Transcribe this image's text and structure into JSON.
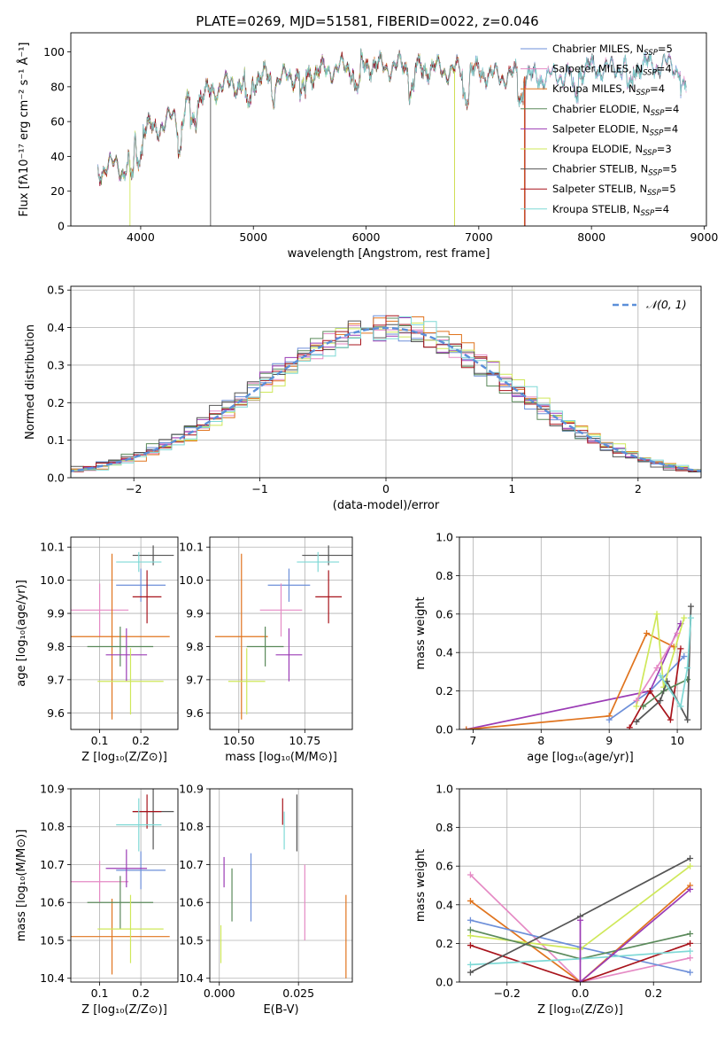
{
  "colors": {
    "chabrier_miles": "#6d8fd9",
    "salpeter_miles": "#e58ac4",
    "kroupa_miles": "#e0741e",
    "chabrier_elodie": "#5b8a5b",
    "salpeter_elodie": "#9b3bb5",
    "kroupa_elodie": "#cfe85a",
    "chabrier_stelib": "#555555",
    "salpeter_stelib": "#a8141c",
    "kroupa_stelib": "#7fd9d6",
    "gaussian": "#5b8fd9",
    "grid": "#b0b0b0"
  },
  "chart_data": [
    {
      "id": "spectrum",
      "type": "line",
      "title": "PLATE=0269, MJD=51581, FIBERID=0022, z=0.046",
      "xlabel": "wavelength [Angstrom, rest frame]",
      "ylabel": "Flux [fλ10⁻¹⁷ erg cm⁻² s⁻¹ Å⁻¹]",
      "xlim": [
        3380,
        9020
      ],
      "ylim": [
        0,
        111
      ],
      "xticks": [
        "4000",
        "5000",
        "6000",
        "7000",
        "8000",
        "9000"
      ],
      "yticks": [
        "0",
        "20",
        "40",
        "60",
        "80",
        "100"
      ],
      "grid": false,
      "legend_position": "top-right",
      "legend": [
        {
          "key": "chabrier_miles",
          "label": "Chabrier MILES, N",
          "sub": "SSP",
          "suffix": "=5"
        },
        {
          "key": "salpeter_miles",
          "label": "Salpeter MILES, N",
          "sub": "SSP",
          "suffix": "=4"
        },
        {
          "key": "kroupa_miles",
          "label": "Kroupa MILES, N",
          "sub": "SSP",
          "suffix": "=4"
        },
        {
          "key": "chabrier_elodie",
          "label": "Chabrier ELODIE, N",
          "sub": "SSP",
          "suffix": "=4"
        },
        {
          "key": "salpeter_elodie",
          "label": "Salpeter ELODIE, N",
          "sub": "SSP",
          "suffix": "=4"
        },
        {
          "key": "kroupa_elodie",
          "label": "Kroupa ELODIE, N",
          "sub": "SSP",
          "suffix": "=3"
        },
        {
          "key": "chabrier_stelib",
          "label": "Chabrier STELIB, N",
          "sub": "SSP",
          "suffix": "=5"
        },
        {
          "key": "salpeter_stelib",
          "label": "Salpeter STELIB, N",
          "sub": "SSP",
          "suffix": "=5"
        },
        {
          "key": "kroupa_stelib",
          "label": "Kroupa STELIB, N",
          "sub": "SSP",
          "suffix": "=4"
        }
      ],
      "envelope": [
        [
          3620,
          35
        ],
        [
          3700,
          38
        ],
        [
          3800,
          40
        ],
        [
          3850,
          34
        ],
        [
          3900,
          42
        ],
        [
          3950,
          52
        ],
        [
          4000,
          60
        ],
        [
          4100,
          60
        ],
        [
          4200,
          62
        ],
        [
          4300,
          68
        ],
        [
          4350,
          58
        ],
        [
          4400,
          72
        ],
        [
          4500,
          78
        ],
        [
          4600,
          80
        ],
        [
          4700,
          84
        ],
        [
          4800,
          86
        ],
        [
          4900,
          85
        ],
        [
          5000,
          88
        ],
        [
          5100,
          90
        ],
        [
          5200,
          87
        ],
        [
          5300,
          90
        ],
        [
          5400,
          91
        ],
        [
          5500,
          92
        ],
        [
          5600,
          93
        ],
        [
          5700,
          94
        ],
        [
          5800,
          95
        ],
        [
          5900,
          95
        ],
        [
          6000,
          97
        ],
        [
          6100,
          96
        ],
        [
          6200,
          95
        ],
        [
          6300,
          96
        ],
        [
          6400,
          95
        ],
        [
          6500,
          94
        ],
        [
          6600,
          95
        ],
        [
          6700,
          93
        ],
        [
          6800,
          94
        ],
        [
          6900,
          92
        ],
        [
          7000,
          93
        ],
        [
          7100,
          91
        ],
        [
          7200,
          90
        ],
        [
          7300,
          91
        ],
        [
          7400,
          91
        ],
        [
          7500,
          89
        ],
        [
          7600,
          90
        ],
        [
          7700,
          90
        ],
        [
          7800,
          92
        ],
        [
          7900,
          93
        ],
        [
          8000,
          95
        ],
        [
          8100,
          94
        ],
        [
          8200,
          95
        ],
        [
          8300,
          96
        ],
        [
          8400,
          95
        ],
        [
          8500,
          97
        ],
        [
          8600,
          96
        ],
        [
          8700,
          97
        ],
        [
          8800,
          94
        ],
        [
          8840,
          95
        ]
      ],
      "dropouts": [
        {
          "key": "chabrier_stelib",
          "x": 4620,
          "y0": 0
        },
        {
          "key": "kroupa_miles",
          "x": 6785,
          "y0": 0
        },
        {
          "key": "kroupa_elodie",
          "x": 6785,
          "y0": 0
        },
        {
          "key": "kroupa_miles",
          "x": 7405,
          "y0": 0
        },
        {
          "key": "salpeter_stelib",
          "x": 7410,
          "y0": 0
        },
        {
          "key": "kroupa_elodie",
          "x": 3905,
          "y0": 0
        }
      ],
      "model_ends": [
        {
          "key": "kroupa_miles",
          "x_end": 7400
        },
        {
          "key": "salpeter_stelib",
          "x_end": 7410
        },
        {
          "key": "chabrier_elodie",
          "x_end": 6790
        },
        {
          "key": "salpeter_elodie",
          "x_end": 6790
        },
        {
          "key": "kroupa_elodie",
          "x_end": 6790
        }
      ]
    },
    {
      "id": "residuals",
      "type": "histogram",
      "xlabel": "(data-model)/error",
      "ylabel": "Normed distribution",
      "xlim": [
        -2.5,
        2.5
      ],
      "ylim": [
        0,
        0.51
      ],
      "xticks": [
        "−2",
        "−1",
        "0",
        "1",
        "2"
      ],
      "yticks": [
        "0.0",
        "0.1",
        "0.2",
        "0.3",
        "0.4",
        "0.5"
      ],
      "grid": true,
      "legend_position": "top-right",
      "gaussian_label": "𝒩(0, 1)",
      "bin_width": 0.1
    },
    {
      "id": "age-vs-z",
      "type": "errorbar",
      "xlabel": "Z [log₁₀(Z/Z⊙)]",
      "ylabel": "age  [log₁₀(age/yr)]",
      "xlim": [
        0.03,
        0.29
      ],
      "ylim": [
        9.55,
        10.13
      ],
      "xticks": [
        "0.1",
        "0.2"
      ],
      "yticks": [
        "9.6",
        "9.7",
        "9.8",
        "9.9",
        "10.0",
        "10.1"
      ],
      "grid": true,
      "points": [
        {
          "key": "chabrier_miles",
          "x": 0.2,
          "xerr": 0.06,
          "y": 9.985,
          "yerr": 0.05
        },
        {
          "key": "salpeter_miles",
          "x": 0.1,
          "xerr": 0.07,
          "y": 9.91,
          "yerr": 0.08
        },
        {
          "key": "kroupa_miles",
          "x": 0.13,
          "xerr": 0.14,
          "y": 9.83,
          "yerr": 0.25
        },
        {
          "key": "chabrier_elodie",
          "x": 0.15,
          "xerr": 0.08,
          "y": 9.8,
          "yerr": 0.06
        },
        {
          "key": "salpeter_elodie",
          "x": 0.165,
          "xerr": 0.05,
          "y": 9.775,
          "yerr": 0.08
        },
        {
          "key": "kroupa_elodie",
          "x": 0.175,
          "xerr": 0.08,
          "y": 9.695,
          "yerr": 0.1
        },
        {
          "key": "chabrier_stelib",
          "x": 0.23,
          "xerr": 0.05,
          "y": 10.075,
          "yerr": 0.03
        },
        {
          "key": "salpeter_stelib",
          "x": 0.215,
          "xerr": 0.035,
          "y": 9.95,
          "yerr": 0.08
        },
        {
          "key": "kroupa_stelib",
          "x": 0.195,
          "xerr": 0.055,
          "y": 10.055,
          "yerr": 0.03
        }
      ]
    },
    {
      "id": "age-vs-mass",
      "type": "errorbar",
      "xlabel": "mass [log₁₀(M/M⊙)]",
      "ylabel": "",
      "xlim": [
        10.39,
        10.93
      ],
      "ylim": [
        9.55,
        10.13
      ],
      "xticks": [
        "10.50",
        "10.75"
      ],
      "yticks": [
        "9.6",
        "9.7",
        "9.8",
        "9.9",
        "10.0",
        "10.1"
      ],
      "grid": true,
      "points": [
        {
          "key": "chabrier_miles",
          "x": 10.69,
          "xerr": 0.08,
          "y": 9.985,
          "yerr": 0.05
        },
        {
          "key": "salpeter_miles",
          "x": 10.66,
          "xerr": 0.08,
          "y": 9.91,
          "yerr": 0.08
        },
        {
          "key": "kroupa_miles",
          "x": 10.51,
          "xerr": 0.1,
          "y": 9.83,
          "yerr": 0.25
        },
        {
          "key": "chabrier_elodie",
          "x": 10.6,
          "xerr": 0.07,
          "y": 9.8,
          "yerr": 0.06
        },
        {
          "key": "salpeter_elodie",
          "x": 10.69,
          "xerr": 0.05,
          "y": 9.775,
          "yerr": 0.08
        },
        {
          "key": "kroupa_elodie",
          "x": 10.53,
          "xerr": 0.07,
          "y": 9.695,
          "yerr": 0.1
        },
        {
          "key": "chabrier_stelib",
          "x": 10.84,
          "xerr": 0.1,
          "y": 10.075,
          "yerr": 0.03
        },
        {
          "key": "salpeter_stelib",
          "x": 10.84,
          "xerr": 0.05,
          "y": 9.95,
          "yerr": 0.08
        },
        {
          "key": "kroupa_stelib",
          "x": 10.8,
          "xerr": 0.08,
          "y": 10.055,
          "yerr": 0.03
        }
      ]
    },
    {
      "id": "massweight-vs-age",
      "type": "line",
      "xlabel": "age  [log₁₀(age/yr)]",
      "ylabel": "mass weight",
      "xlim": [
        6.8,
        10.35
      ],
      "ylim": [
        0,
        1
      ],
      "xticks": [
        "7",
        "8",
        "9",
        "10"
      ],
      "yticks": [
        "0.0",
        "0.2",
        "0.4",
        "0.6",
        "0.8",
        "1.0"
      ],
      "grid": true,
      "series": [
        {
          "key": "salpeter_elodie",
          "x": [
            6.9,
            9.6,
            10.05
          ],
          "y": [
            0.0,
            0.2,
            0.55
          ]
        },
        {
          "key": "kroupa_miles",
          "x": [
            6.9,
            9.0,
            9.55,
            9.95
          ],
          "y": [
            0.0,
            0.07,
            0.5,
            0.43
          ]
        },
        {
          "key": "chabrier_miles",
          "x": [
            9.0,
            9.6,
            10.1
          ],
          "y": [
            0.05,
            0.2,
            0.38
          ]
        },
        {
          "key": "kroupa_elodie",
          "x": [
            9.4,
            9.7,
            9.8,
            10.1
          ],
          "y": [
            0.12,
            0.6,
            0.22,
            0.58
          ]
        },
        {
          "key": "salpeter_miles",
          "x": [
            9.4,
            9.7,
            10.0
          ],
          "y": [
            0.15,
            0.32,
            0.5
          ]
        },
        {
          "key": "salpeter_stelib",
          "x": [
            9.3,
            9.6,
            9.9,
            10.05
          ],
          "y": [
            0.01,
            0.2,
            0.05,
            0.42
          ]
        },
        {
          "key": "chabrier_elodie",
          "x": [
            9.5,
            9.8,
            10.15
          ],
          "y": [
            0.12,
            0.2,
            0.26
          ]
        },
        {
          "key": "chabrier_stelib",
          "x": [
            9.4,
            9.75,
            9.85,
            10.15,
            10.2
          ],
          "y": [
            0.04,
            0.15,
            0.25,
            0.05,
            0.64
          ]
        },
        {
          "key": "kroupa_stelib",
          "x": [
            9.75,
            10.05,
            10.15,
            10.2
          ],
          "y": [
            0.28,
            0.12,
            0.32,
            0.58
          ]
        }
      ]
    },
    {
      "id": "mass-vs-z",
      "type": "errorbar",
      "xlabel": "Z [log₁₀(Z/Z⊙)]",
      "ylabel": "mass [log₁₀(M/M⊙)]",
      "xlim": [
        0.03,
        0.29
      ],
      "ylim": [
        10.39,
        10.9
      ],
      "xticks": [
        "0.1",
        "0.2"
      ],
      "yticks": [
        "10.4",
        "10.5",
        "10.6",
        "10.7",
        "10.8",
        "10.9"
      ],
      "grid": true,
      "points": [
        {
          "key": "chabrier_miles",
          "x": 0.2,
          "xerr": 0.06,
          "y": 10.685,
          "yerr": 0.05
        },
        {
          "key": "salpeter_miles",
          "x": 0.1,
          "xerr": 0.07,
          "y": 10.655,
          "yerr": 0.055
        },
        {
          "key": "kroupa_miles",
          "x": 0.13,
          "xerr": 0.14,
          "y": 10.51,
          "yerr": 0.1
        },
        {
          "key": "chabrier_elodie",
          "x": 0.15,
          "xerr": 0.08,
          "y": 10.6,
          "yerr": 0.07
        },
        {
          "key": "salpeter_elodie",
          "x": 0.165,
          "xerr": 0.05,
          "y": 10.69,
          "yerr": 0.05
        },
        {
          "key": "kroupa_elodie",
          "x": 0.175,
          "xerr": 0.08,
          "y": 10.53,
          "yerr": 0.09
        },
        {
          "key": "chabrier_stelib",
          "x": 0.23,
          "xerr": 0.05,
          "y": 10.84,
          "yerr": 0.1
        },
        {
          "key": "salpeter_stelib",
          "x": 0.215,
          "xerr": 0.035,
          "y": 10.84,
          "yerr": 0.045
        },
        {
          "key": "kroupa_stelib",
          "x": 0.195,
          "xerr": 0.055,
          "y": 10.805,
          "yerr": 0.07
        }
      ]
    },
    {
      "id": "mass-vs-ebv",
      "type": "errorbar",
      "xlabel": "E(B-V)",
      "ylabel": "",
      "xlim": [
        -0.003,
        0.042
      ],
      "ylim": [
        10.39,
        10.9
      ],
      "xticks": [
        "0.000",
        "0.025"
      ],
      "yticks": [
        "10.4",
        "10.5",
        "10.6",
        "10.7",
        "10.8",
        "10.9"
      ],
      "grid": true,
      "points": [
        {
          "key": "chabrier_miles",
          "x": 0.01,
          "xerr": 0,
          "y": 10.64,
          "yerr": 0.09
        },
        {
          "key": "salpeter_miles",
          "x": 0.027,
          "xerr": 0,
          "y": 10.6,
          "yerr": 0.1
        },
        {
          "key": "kroupa_miles",
          "x": 0.04,
          "xerr": 0,
          "y": 10.51,
          "yerr": 0.11
        },
        {
          "key": "chabrier_elodie",
          "x": 0.004,
          "xerr": 0,
          "y": 10.62,
          "yerr": 0.07
        },
        {
          "key": "salpeter_elodie",
          "x": 0.0015,
          "xerr": 0,
          "y": 10.68,
          "yerr": 0.04
        },
        {
          "key": "kroupa_elodie",
          "x": 0.0005,
          "xerr": 0,
          "y": 10.49,
          "yerr": 0.05
        },
        {
          "key": "chabrier_stelib",
          "x": 0.0245,
          "xerr": 0,
          "y": 10.81,
          "yerr": 0.075
        },
        {
          "key": "salpeter_stelib",
          "x": 0.02,
          "xerr": 0,
          "y": 10.84,
          "yerr": 0.035
        },
        {
          "key": "kroupa_stelib",
          "x": 0.0205,
          "xerr": 0,
          "y": 10.79,
          "yerr": 0.05
        }
      ]
    },
    {
      "id": "massweight-vs-z",
      "type": "line",
      "xlabel": "Z [log₁₀(Z/Z⊙)]",
      "ylabel": "mass weight",
      "xlim": [
        -0.33,
        0.33
      ],
      "ylim": [
        0,
        1
      ],
      "xticks": [
        "−0.2",
        "0.0",
        "0.2"
      ],
      "yticks": [
        "0.0",
        "0.2",
        "0.4",
        "0.6",
        "0.8",
        "1.0"
      ],
      "grid": true,
      "series": [
        {
          "key": "salpeter_miles",
          "x": [
            -0.3,
            0.0,
            0.3
          ],
          "y": [
            0.555,
            0.0,
            0.125
          ]
        },
        {
          "key": "kroupa_miles",
          "x": [
            -0.3,
            0.0,
            0.3
          ],
          "y": [
            0.42,
            0.0,
            0.5
          ]
        },
        {
          "key": "chabrier_miles",
          "x": [
            -0.3,
            0.0,
            0.3
          ],
          "y": [
            0.32,
            0.18,
            0.05
          ]
        },
        {
          "key": "kroupa_elodie",
          "x": [
            -0.3,
            0.0,
            0.3
          ],
          "y": [
            0.24,
            0.17,
            0.6
          ]
        },
        {
          "key": "chabrier_elodie",
          "x": [
            -0.3,
            0.0,
            0.3
          ],
          "y": [
            0.27,
            0.12,
            0.25
          ]
        },
        {
          "key": "salpeter_stelib",
          "x": [
            -0.3,
            0.0,
            0.3
          ],
          "y": [
            0.19,
            0.0,
            0.2
          ]
        },
        {
          "key": "kroupa_stelib",
          "x": [
            -0.3,
            0.0,
            0.3
          ],
          "y": [
            0.09,
            0.12,
            0.16
          ]
        },
        {
          "key": "chabrier_stelib",
          "x": [
            -0.3,
            0.0,
            0.3
          ],
          "y": [
            0.05,
            0.34,
            0.64
          ]
        },
        {
          "key": "salpeter_elodie",
          "x": [
            0.0,
            0.0,
            0.3
          ],
          "y": [
            0.32,
            0.0,
            0.48
          ]
        }
      ]
    }
  ]
}
